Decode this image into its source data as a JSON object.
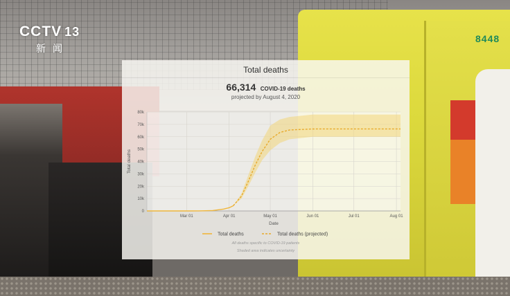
{
  "broadcast": {
    "logo_text": "CCTV",
    "channel_number": "13",
    "logo_subtitle": "新闻",
    "vehicle_number": "8448"
  },
  "card": {
    "title": "Total deaths",
    "headline_value": "66,314",
    "headline_label": "COVID-19 deaths",
    "subline": "projected by August 4, 2020",
    "footnote_1": "All deaths specific to COVID-19 patients",
    "footnote_2": "Shaded area indicates uncertainty"
  },
  "chart_data": {
    "type": "line",
    "title": "Total deaths",
    "xlabel": "Date",
    "ylabel": "Total deaths",
    "ylim": [
      0,
      80000
    ],
    "y_ticks": [
      0,
      10000,
      20000,
      30000,
      40000,
      50000,
      60000,
      70000,
      80000
    ],
    "y_tick_labels": [
      "0",
      "10k",
      "20k",
      "30k",
      "40k",
      "50k",
      "60k",
      "70k",
      "80k"
    ],
    "x_range": [
      "2020-02-01",
      "2020-08-04"
    ],
    "x_ticks": [
      "2020-03-01",
      "2020-04-01",
      "2020-05-01",
      "2020-06-01",
      "2020-07-01",
      "2020-08-01"
    ],
    "x_tick_labels": [
      "Mar 01",
      "Apr 01",
      "May 01",
      "Jun 01",
      "Jul 01",
      "Aug 01"
    ],
    "grid": true,
    "legend_position": "bottom",
    "series": [
      {
        "name": "Total deaths",
        "style": "solid",
        "color": "#f0b63a",
        "points": [
          [
            "2020-02-01",
            0
          ],
          [
            "2020-03-01",
            0
          ],
          [
            "2020-03-10",
            10
          ],
          [
            "2020-03-20",
            300
          ],
          [
            "2020-03-28",
            1500
          ],
          [
            "2020-04-01",
            2600
          ],
          [
            "2020-04-04",
            4200
          ]
        ]
      },
      {
        "name": "Total deaths (projected)",
        "style": "dashed",
        "color": "#e8a92a",
        "points": [
          [
            "2020-04-04",
            4200
          ],
          [
            "2020-04-10",
            12000
          ],
          [
            "2020-04-15",
            24000
          ],
          [
            "2020-04-20",
            37000
          ],
          [
            "2020-04-25",
            48000
          ],
          [
            "2020-05-01",
            58000
          ],
          [
            "2020-05-08",
            63500
          ],
          [
            "2020-05-15",
            65500
          ],
          [
            "2020-06-01",
            66300
          ],
          [
            "2020-07-01",
            66314
          ],
          [
            "2020-08-04",
            66314
          ]
        ],
        "uncertainty": [
          [
            "2020-04-04",
            4200,
            4200
          ],
          [
            "2020-04-10",
            10000,
            14000
          ],
          [
            "2020-04-15",
            20000,
            29000
          ],
          [
            "2020-04-20",
            31000,
            44000
          ],
          [
            "2020-04-25",
            41000,
            57000
          ],
          [
            "2020-05-01",
            49000,
            69000
          ],
          [
            "2020-05-08",
            55000,
            74000
          ],
          [
            "2020-05-15",
            58000,
            76000
          ],
          [
            "2020-06-01",
            60000,
            78000
          ],
          [
            "2020-07-01",
            60000,
            78000
          ],
          [
            "2020-08-04",
            60000,
            78000
          ]
        ]
      }
    ],
    "band_color": "#f3d67a"
  }
}
